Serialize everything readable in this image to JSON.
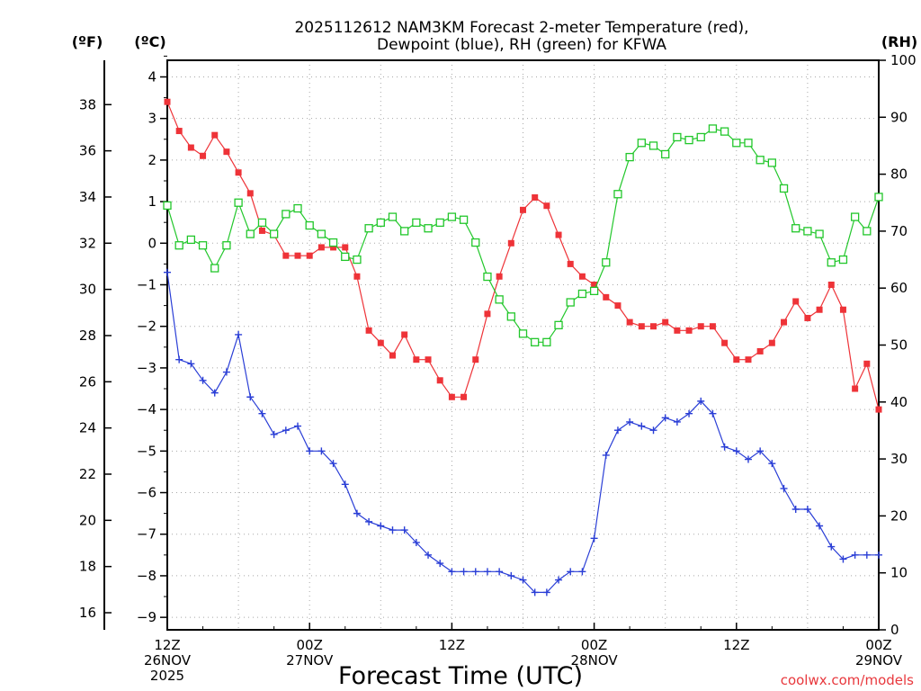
{
  "chart_data": {
    "type": "line",
    "title_line1": "2025112612 NAM3KM Forecast 2-meter Temperature (red),",
    "title_line2": "Dewpoint (blue), RH (green) for KFWA",
    "xlabel": "Forecast Time (UTC)",
    "credit": "coolwx.com/models",
    "unit_labels": {
      "fahrenheit": "(ºF)",
      "celsius": "(ºC)",
      "rh": "(RH)"
    },
    "x_hours_range": [
      0,
      60
    ],
    "x_ticks": [
      {
        "hour": 0,
        "line1": "12Z",
        "line2": "26NOV",
        "line3": "2025"
      },
      {
        "hour": 12,
        "line1": "00Z",
        "line2": "27NOV",
        "line3": ""
      },
      {
        "hour": 24,
        "line1": "12Z",
        "line2": "",
        "line3": ""
      },
      {
        "hour": 36,
        "line1": "00Z",
        "line2": "28NOV",
        "line3": ""
      },
      {
        "hour": 48,
        "line1": "12Z",
        "line2": "",
        "line3": ""
      },
      {
        "hour": 60,
        "line1": "00Z",
        "line2": "29NOV",
        "line3": ""
      }
    ],
    "celsius_range": [
      -9.3,
      4.4
    ],
    "celsius_ticks": [
      "4",
      "3",
      "2",
      "1",
      "0",
      "−1",
      "−2",
      "−3",
      "−4",
      "−5",
      "−6",
      "−7",
      "−8",
      "−9"
    ],
    "fahrenheit_ticks": [
      "16",
      "18",
      "20",
      "22",
      "24",
      "26",
      "28",
      "30",
      "32",
      "34",
      "36",
      "38"
    ],
    "rh_range": [
      0,
      100
    ],
    "rh_ticks": [
      "0",
      "10",
      "20",
      "30",
      "40",
      "50",
      "60",
      "70",
      "80",
      "90",
      "100"
    ],
    "series": [
      {
        "name": "Temperature",
        "unit": "C",
        "color": "#ee3338",
        "marker": "filled-square",
        "values": [
          3.4,
          2.7,
          2.3,
          2.1,
          2.6,
          2.2,
          1.7,
          1.2,
          0.3,
          0.2,
          -0.3,
          -0.3,
          -0.3,
          -0.1,
          -0.1,
          -0.1,
          -0.8,
          -2.1,
          -2.4,
          -2.7,
          -2.2,
          -2.8,
          -2.8,
          -3.3,
          -3.7,
          -3.7,
          -2.8,
          -1.7,
          -0.8,
          0.0,
          0.8,
          1.1,
          0.9,
          0.2,
          -0.5,
          -0.8,
          -1.0,
          -1.3,
          -1.5,
          -1.9,
          -2.0,
          -2.0,
          -1.9,
          -2.1,
          -2.1,
          -2.0,
          -2.0,
          -2.4,
          -2.8,
          -2.8,
          -2.6,
          -2.4,
          -1.9,
          -1.4,
          -1.8,
          -1.6,
          -1.0,
          -1.6,
          -3.5,
          -2.9,
          -4.0
        ]
      },
      {
        "name": "Dewpoint",
        "unit": "C",
        "color": "#2a3ed6",
        "marker": "plus",
        "values": [
          -0.7,
          -2.8,
          -2.9,
          -3.3,
          -3.6,
          -3.1,
          -2.2,
          -3.7,
          -4.1,
          -4.6,
          -4.5,
          -4.4,
          -5.0,
          -5.0,
          -5.3,
          -5.8,
          -6.5,
          -6.7,
          -6.8,
          -6.9,
          -6.9,
          -7.2,
          -7.5,
          -7.7,
          -7.9,
          -7.9,
          -7.9,
          -7.9,
          -7.9,
          -8.0,
          -8.1,
          -8.4,
          -8.4,
          -8.1,
          -7.9,
          -7.9,
          -7.1,
          -5.1,
          -4.5,
          -4.3,
          -4.4,
          -4.5,
          -4.2,
          -4.3,
          -4.1,
          -3.8,
          -4.1,
          -4.9,
          -5.0,
          -5.2,
          -5.0,
          -5.3,
          -5.9,
          -6.4,
          -6.4,
          -6.8,
          -7.3,
          -7.6,
          -7.5,
          -7.5,
          -7.5
        ]
      },
      {
        "name": "RH",
        "unit": "%",
        "color": "#22c72b",
        "marker": "hollow-square",
        "values": [
          74.5,
          67.5,
          68.5,
          67.5,
          63.5,
          67.5,
          75.0,
          69.5,
          71.5,
          69.5,
          73.0,
          74.0,
          71.0,
          69.5,
          68.0,
          65.5,
          65.0,
          70.5,
          71.5,
          72.5,
          70.0,
          71.5,
          70.5,
          71.5,
          72.5,
          72.0,
          68.0,
          62.0,
          58.0,
          55.0,
          52.0,
          50.5,
          50.5,
          53.5,
          57.5,
          59.0,
          59.5,
          64.5,
          76.5,
          83.0,
          85.5,
          85.0,
          83.5,
          86.5,
          86.0,
          86.5,
          88.0,
          87.5,
          85.5,
          85.5,
          82.5,
          82.0,
          77.5,
          70.5,
          70.0,
          69.5,
          64.5,
          65.0,
          72.5,
          70.0,
          76.0
        ]
      }
    ]
  }
}
